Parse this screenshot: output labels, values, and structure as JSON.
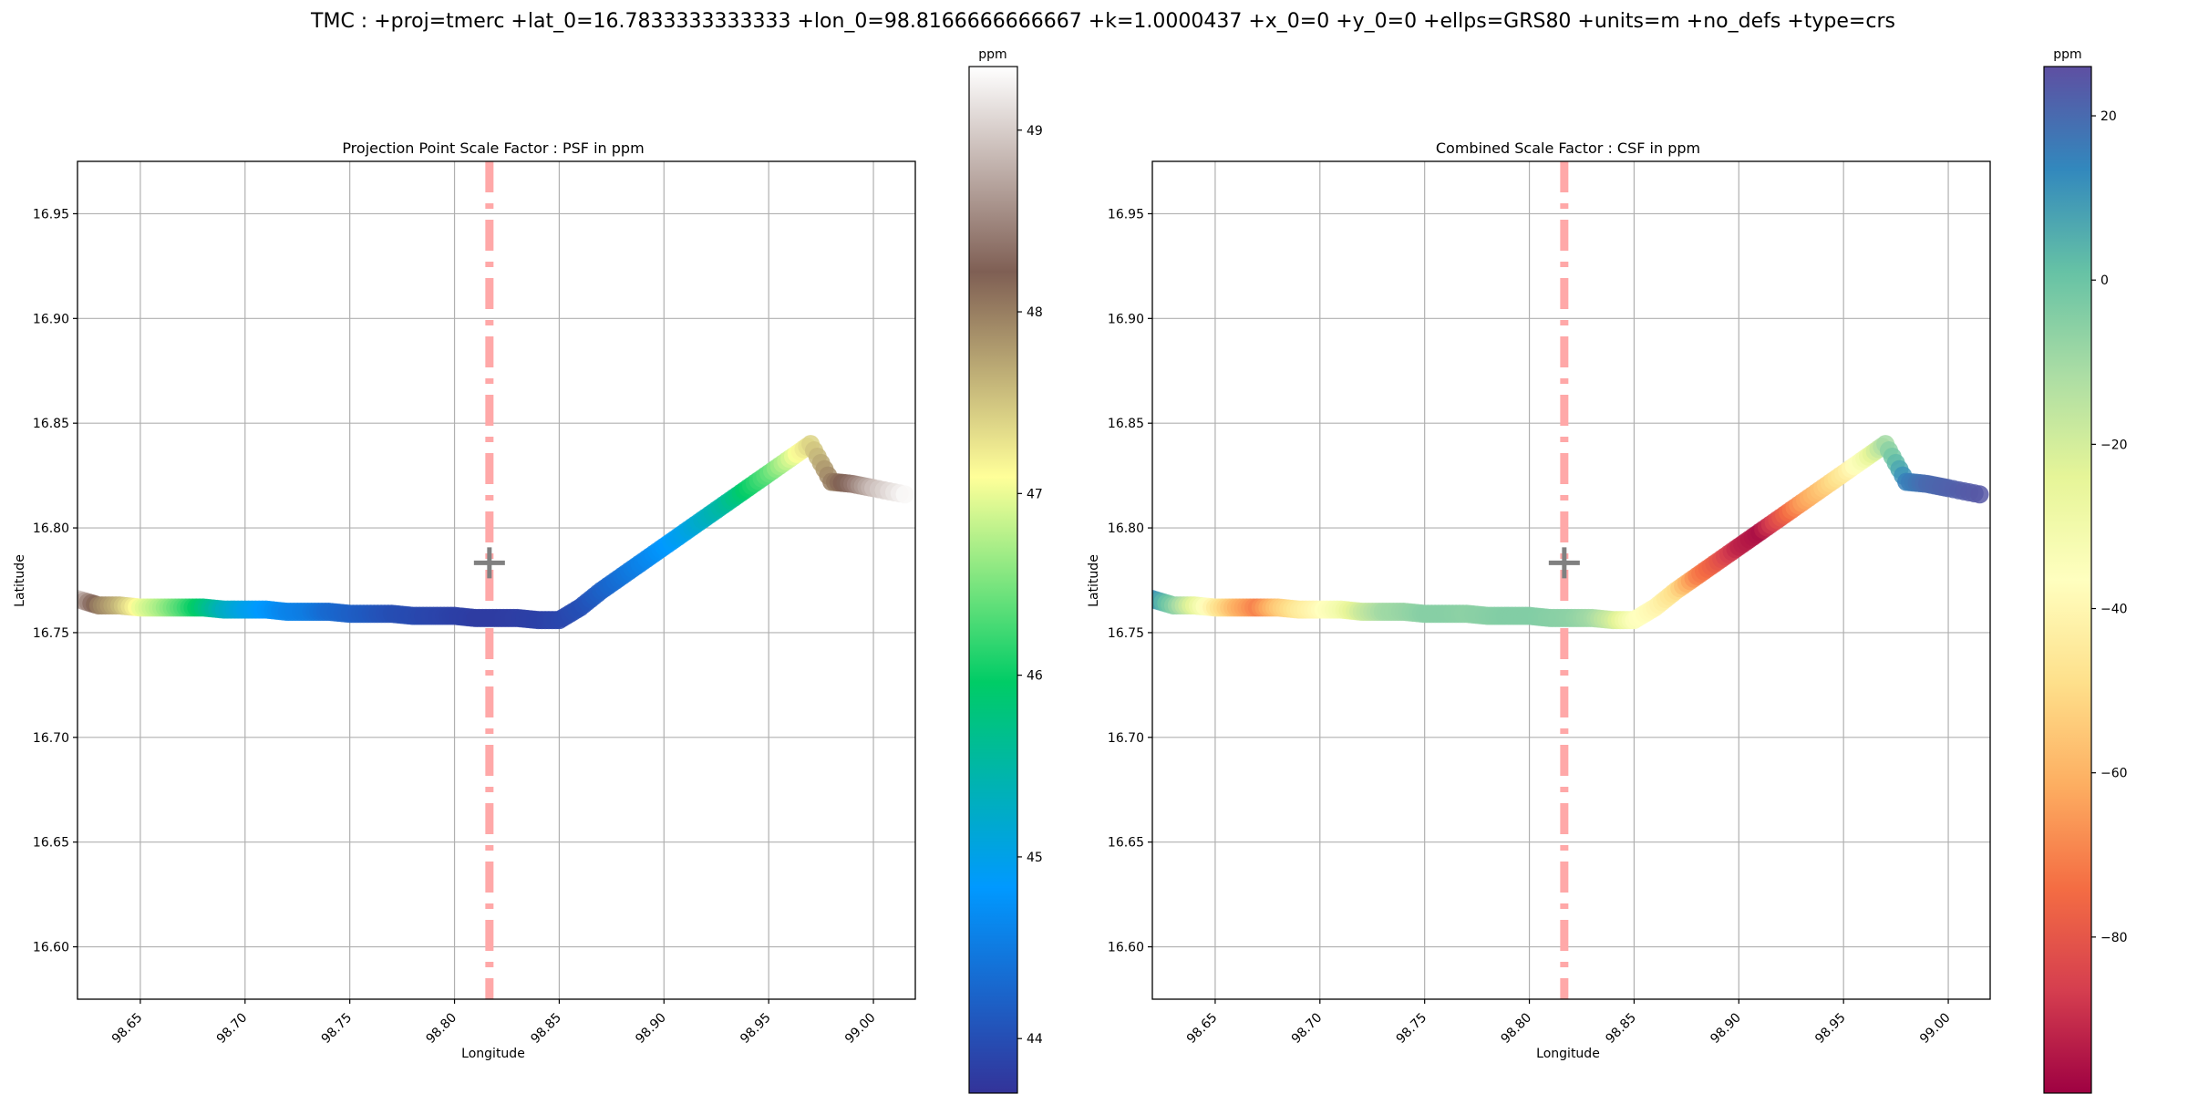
{
  "suptitle": "TMC : +proj=tmerc +lat_0=16.7833333333333 +lon_0=98.8166666666667 +k=1.0000437 +x_0=0 +y_0=0 +ellps=GRS80 +units=m +no_defs +type=crs",
  "chart_data": [
    {
      "type": "scatter",
      "title": "Projection Point Scale Factor : PSF in ppm",
      "xlabel": "Longitude",
      "ylabel": "Latitude",
      "xlim": [
        98.62,
        99.02
      ],
      "ylim": [
        16.575,
        16.975
      ],
      "xticks": [
        "98.65",
        "98.70",
        "98.75",
        "98.80",
        "98.85",
        "98.90",
        "98.95",
        "99.00"
      ],
      "yticks": [
        "16.60",
        "16.65",
        "16.70",
        "16.75",
        "16.80",
        "16.85",
        "16.90",
        "16.95"
      ],
      "grid": true,
      "central_meridian": 98.8166666666667,
      "origin_marker": [
        98.8166666666667,
        16.7833333333333
      ],
      "colorbar": {
        "label": "ppm",
        "range": [
          43.7,
          49.35
        ],
        "ticks": [
          "44",
          "45",
          "46",
          "47",
          "48",
          "49"
        ],
        "colormap": "terrain",
        "colors": [
          "#333399",
          "#0099ff",
          "#00cc66",
          "#ffff99",
          "#7f5f54",
          "#ffffff"
        ]
      },
      "series": [
        {
          "x": [
            98.62,
            98.63,
            98.64,
            98.65,
            98.66,
            98.67,
            98.68,
            98.69,
            98.7,
            98.71,
            98.72,
            98.73,
            98.74,
            98.75,
            98.76,
            98.77,
            98.78,
            98.79,
            98.8,
            98.81,
            98.82,
            98.83,
            98.84,
            98.85,
            98.86,
            98.87,
            98.88,
            98.89,
            98.9,
            98.91,
            98.92,
            98.93,
            98.94,
            98.95,
            98.96,
            98.97,
            98.98,
            98.99,
            99.0,
            99.015
          ],
          "y": [
            16.766,
            16.763,
            16.763,
            16.762,
            16.762,
            16.762,
            16.762,
            16.761,
            16.761,
            16.761,
            16.76,
            16.76,
            16.76,
            16.759,
            16.759,
            16.759,
            16.758,
            16.758,
            16.758,
            16.757,
            16.757,
            16.757,
            16.756,
            16.756,
            16.762,
            16.77,
            16.777,
            16.784,
            16.791,
            16.798,
            16.805,
            16.812,
            16.819,
            16.826,
            16.833,
            16.84,
            16.822,
            16.821,
            16.819,
            16.816
          ],
          "values": [
            49.0,
            48.0,
            47.6,
            47.0,
            46.7,
            46.3,
            45.8,
            45.3,
            45.0,
            44.8,
            44.6,
            44.5,
            44.3,
            44.2,
            44.1,
            44.0,
            43.95,
            43.9,
            43.85,
            43.8,
            43.8,
            43.82,
            43.85,
            43.9,
            44.0,
            44.2,
            44.4,
            44.6,
            44.8,
            45.0,
            45.3,
            45.6,
            46.0,
            46.4,
            46.9,
            47.4,
            48.0,
            48.4,
            48.9,
            49.3
          ]
        }
      ]
    },
    {
      "type": "scatter",
      "title": "Combined Scale Factor : CSF in ppm",
      "xlabel": "Longitude",
      "ylabel": "Latitude",
      "xlim": [
        98.62,
        99.02
      ],
      "ylim": [
        16.575,
        16.975
      ],
      "xticks": [
        "98.65",
        "98.70",
        "98.75",
        "98.80",
        "98.85",
        "98.90",
        "98.95",
        "99.00"
      ],
      "yticks": [
        "16.60",
        "16.65",
        "16.70",
        "16.75",
        "16.80",
        "16.85",
        "16.90",
        "16.95"
      ],
      "grid": true,
      "central_meridian": 98.8166666666667,
      "origin_marker": [
        98.8166666666667,
        16.7833333333333
      ],
      "colorbar": {
        "label": "ppm",
        "range": [
          -99,
          26
        ],
        "ticks": [
          "20",
          "0",
          "−20",
          "−40",
          "−60",
          "−80"
        ],
        "colormap": "Spectral",
        "colors": [
          "#9e0142",
          "#d53e4f",
          "#f46d43",
          "#fdae61",
          "#fee08b",
          "#ffffbf",
          "#e6f598",
          "#abdda4",
          "#66c2a5",
          "#3288bd",
          "#5e4fa2"
        ]
      },
      "series": [
        {
          "x": [
            98.62,
            98.63,
            98.64,
            98.65,
            98.66,
            98.67,
            98.68,
            98.69,
            98.7,
            98.71,
            98.72,
            98.73,
            98.74,
            98.75,
            98.76,
            98.77,
            98.78,
            98.79,
            98.8,
            98.81,
            98.82,
            98.83,
            98.84,
            98.85,
            98.86,
            98.87,
            98.88,
            98.89,
            98.9,
            98.91,
            98.92,
            98.93,
            98.94,
            98.95,
            98.96,
            98.97,
            98.98,
            98.99,
            99.0,
            99.015
          ],
          "y": [
            16.766,
            16.763,
            16.763,
            16.762,
            16.762,
            16.762,
            16.762,
            16.761,
            16.761,
            16.761,
            16.76,
            16.76,
            16.76,
            16.759,
            16.759,
            16.759,
            16.758,
            16.758,
            16.758,
            16.757,
            16.757,
            16.757,
            16.756,
            16.756,
            16.762,
            16.77,
            16.777,
            16.784,
            16.791,
            16.798,
            16.805,
            16.812,
            16.819,
            16.826,
            16.833,
            16.84,
            16.822,
            16.821,
            16.819,
            16.816
          ],
          "values": [
            12,
            -5,
            -25,
            -45,
            -60,
            -70,
            -55,
            -45,
            -38,
            -30,
            -18,
            -10,
            -8,
            -5,
            -5,
            -6,
            -5,
            -4,
            -4,
            -5,
            -6,
            -10,
            -20,
            -35,
            -40,
            -50,
            -70,
            -80,
            -92,
            -96,
            -80,
            -65,
            -55,
            -45,
            -30,
            -10,
            15,
            20,
            22,
            24
          ]
        }
      ]
    }
  ]
}
